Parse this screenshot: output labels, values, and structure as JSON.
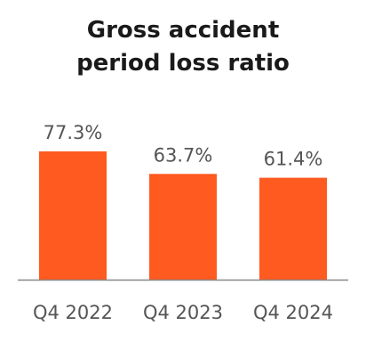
{
  "chart_data": {
    "type": "bar",
    "title_lines": [
      "Gross accident",
      "period loss ratio"
    ],
    "categories": [
      "Q4 2022",
      "Q4 2023",
      "Q4 2024"
    ],
    "values": [
      77.3,
      63.7,
      61.4
    ],
    "value_labels": [
      "77.3%",
      "63.7%",
      "61.4%"
    ],
    "ylim": [
      0,
      100
    ],
    "grid": false,
    "legend": "none",
    "bar_color": "#FF5A1F",
    "axis_color": "#888888"
  }
}
